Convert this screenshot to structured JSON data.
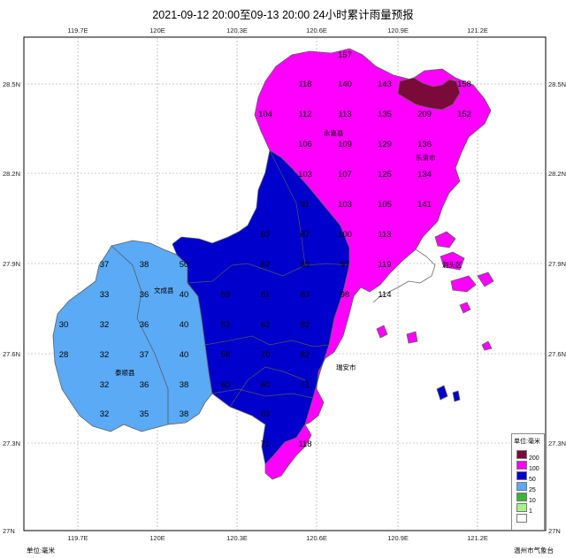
{
  "title": "2021-09-12 20:00至09-13 20:00 24小时累计雨量预报",
  "lon_ticks": [
    "119.7E",
    "120E",
    "120.3E",
    "120.6E",
    "120.9E",
    "121.2E"
  ],
  "lat_ticks": [
    "28.5N",
    "28.2N",
    "27.9N",
    "27.6N",
    "27.3N",
    "27N"
  ],
  "legend": {
    "title": "单位:毫米",
    "levels": [
      {
        "label": "200",
        "color": "#7a0a3a"
      },
      {
        "label": "100",
        "color": "#ff00ff"
      },
      {
        "label": "50",
        "color": "#0000cc"
      },
      {
        "label": "25",
        "color": "#5aaaf5"
      },
      {
        "label": "10",
        "color": "#3cb43c"
      },
      {
        "label": "1",
        "color": "#a6f28f"
      },
      {
        "label": "",
        "color": "#ffffff"
      }
    ]
  },
  "footer_left": "单位:毫米",
  "footer_right": "温州市气象台",
  "places": [
    "永嘉县",
    "乐清市",
    "文成县",
    "泰顺县",
    "瑞安市",
    "洞头区"
  ],
  "grid_values": [
    {
      "v": "157"
    },
    {
      "v": "118"
    },
    {
      "v": "140"
    },
    {
      "v": "143"
    },
    {
      "v": "158"
    },
    {
      "v": "104"
    },
    {
      "v": "112"
    },
    {
      "v": "113"
    },
    {
      "v": "135"
    },
    {
      "v": "209"
    },
    {
      "v": "152"
    },
    {
      "v": "106"
    },
    {
      "v": "109"
    },
    {
      "v": "129"
    },
    {
      "v": "136"
    },
    {
      "v": "103"
    },
    {
      "v": "107"
    },
    {
      "v": "125"
    },
    {
      "v": "134"
    },
    {
      "v": "91"
    },
    {
      "v": "103"
    },
    {
      "v": "105"
    },
    {
      "v": "141"
    },
    {
      "v": "63"
    },
    {
      "v": "87"
    },
    {
      "v": "100"
    },
    {
      "v": "113"
    },
    {
      "v": "37"
    },
    {
      "v": "38"
    },
    {
      "v": "50"
    },
    {
      "v": "62"
    },
    {
      "v": "83"
    },
    {
      "v": "97"
    },
    {
      "v": "119"
    },
    {
      "v": "33"
    },
    {
      "v": "36"
    },
    {
      "v": "40"
    },
    {
      "v": "59"
    },
    {
      "v": "61"
    },
    {
      "v": "83"
    },
    {
      "v": "98"
    },
    {
      "v": "114"
    },
    {
      "v": "30"
    },
    {
      "v": "32"
    },
    {
      "v": "36"
    },
    {
      "v": "40"
    },
    {
      "v": "52"
    },
    {
      "v": "62"
    },
    {
      "v": "82"
    },
    {
      "v": "28"
    },
    {
      "v": "32"
    },
    {
      "v": "37"
    },
    {
      "v": "40"
    },
    {
      "v": "56"
    },
    {
      "v": "70"
    },
    {
      "v": "82"
    },
    {
      "v": "32"
    },
    {
      "v": "36"
    },
    {
      "v": "38"
    },
    {
      "v": "60"
    },
    {
      "v": "60"
    },
    {
      "v": "71"
    },
    {
      "v": "32"
    },
    {
      "v": "35"
    },
    {
      "v": "38"
    },
    {
      "v": "63"
    },
    {
      "v": "71"
    },
    {
      "v": "118"
    }
  ]
}
